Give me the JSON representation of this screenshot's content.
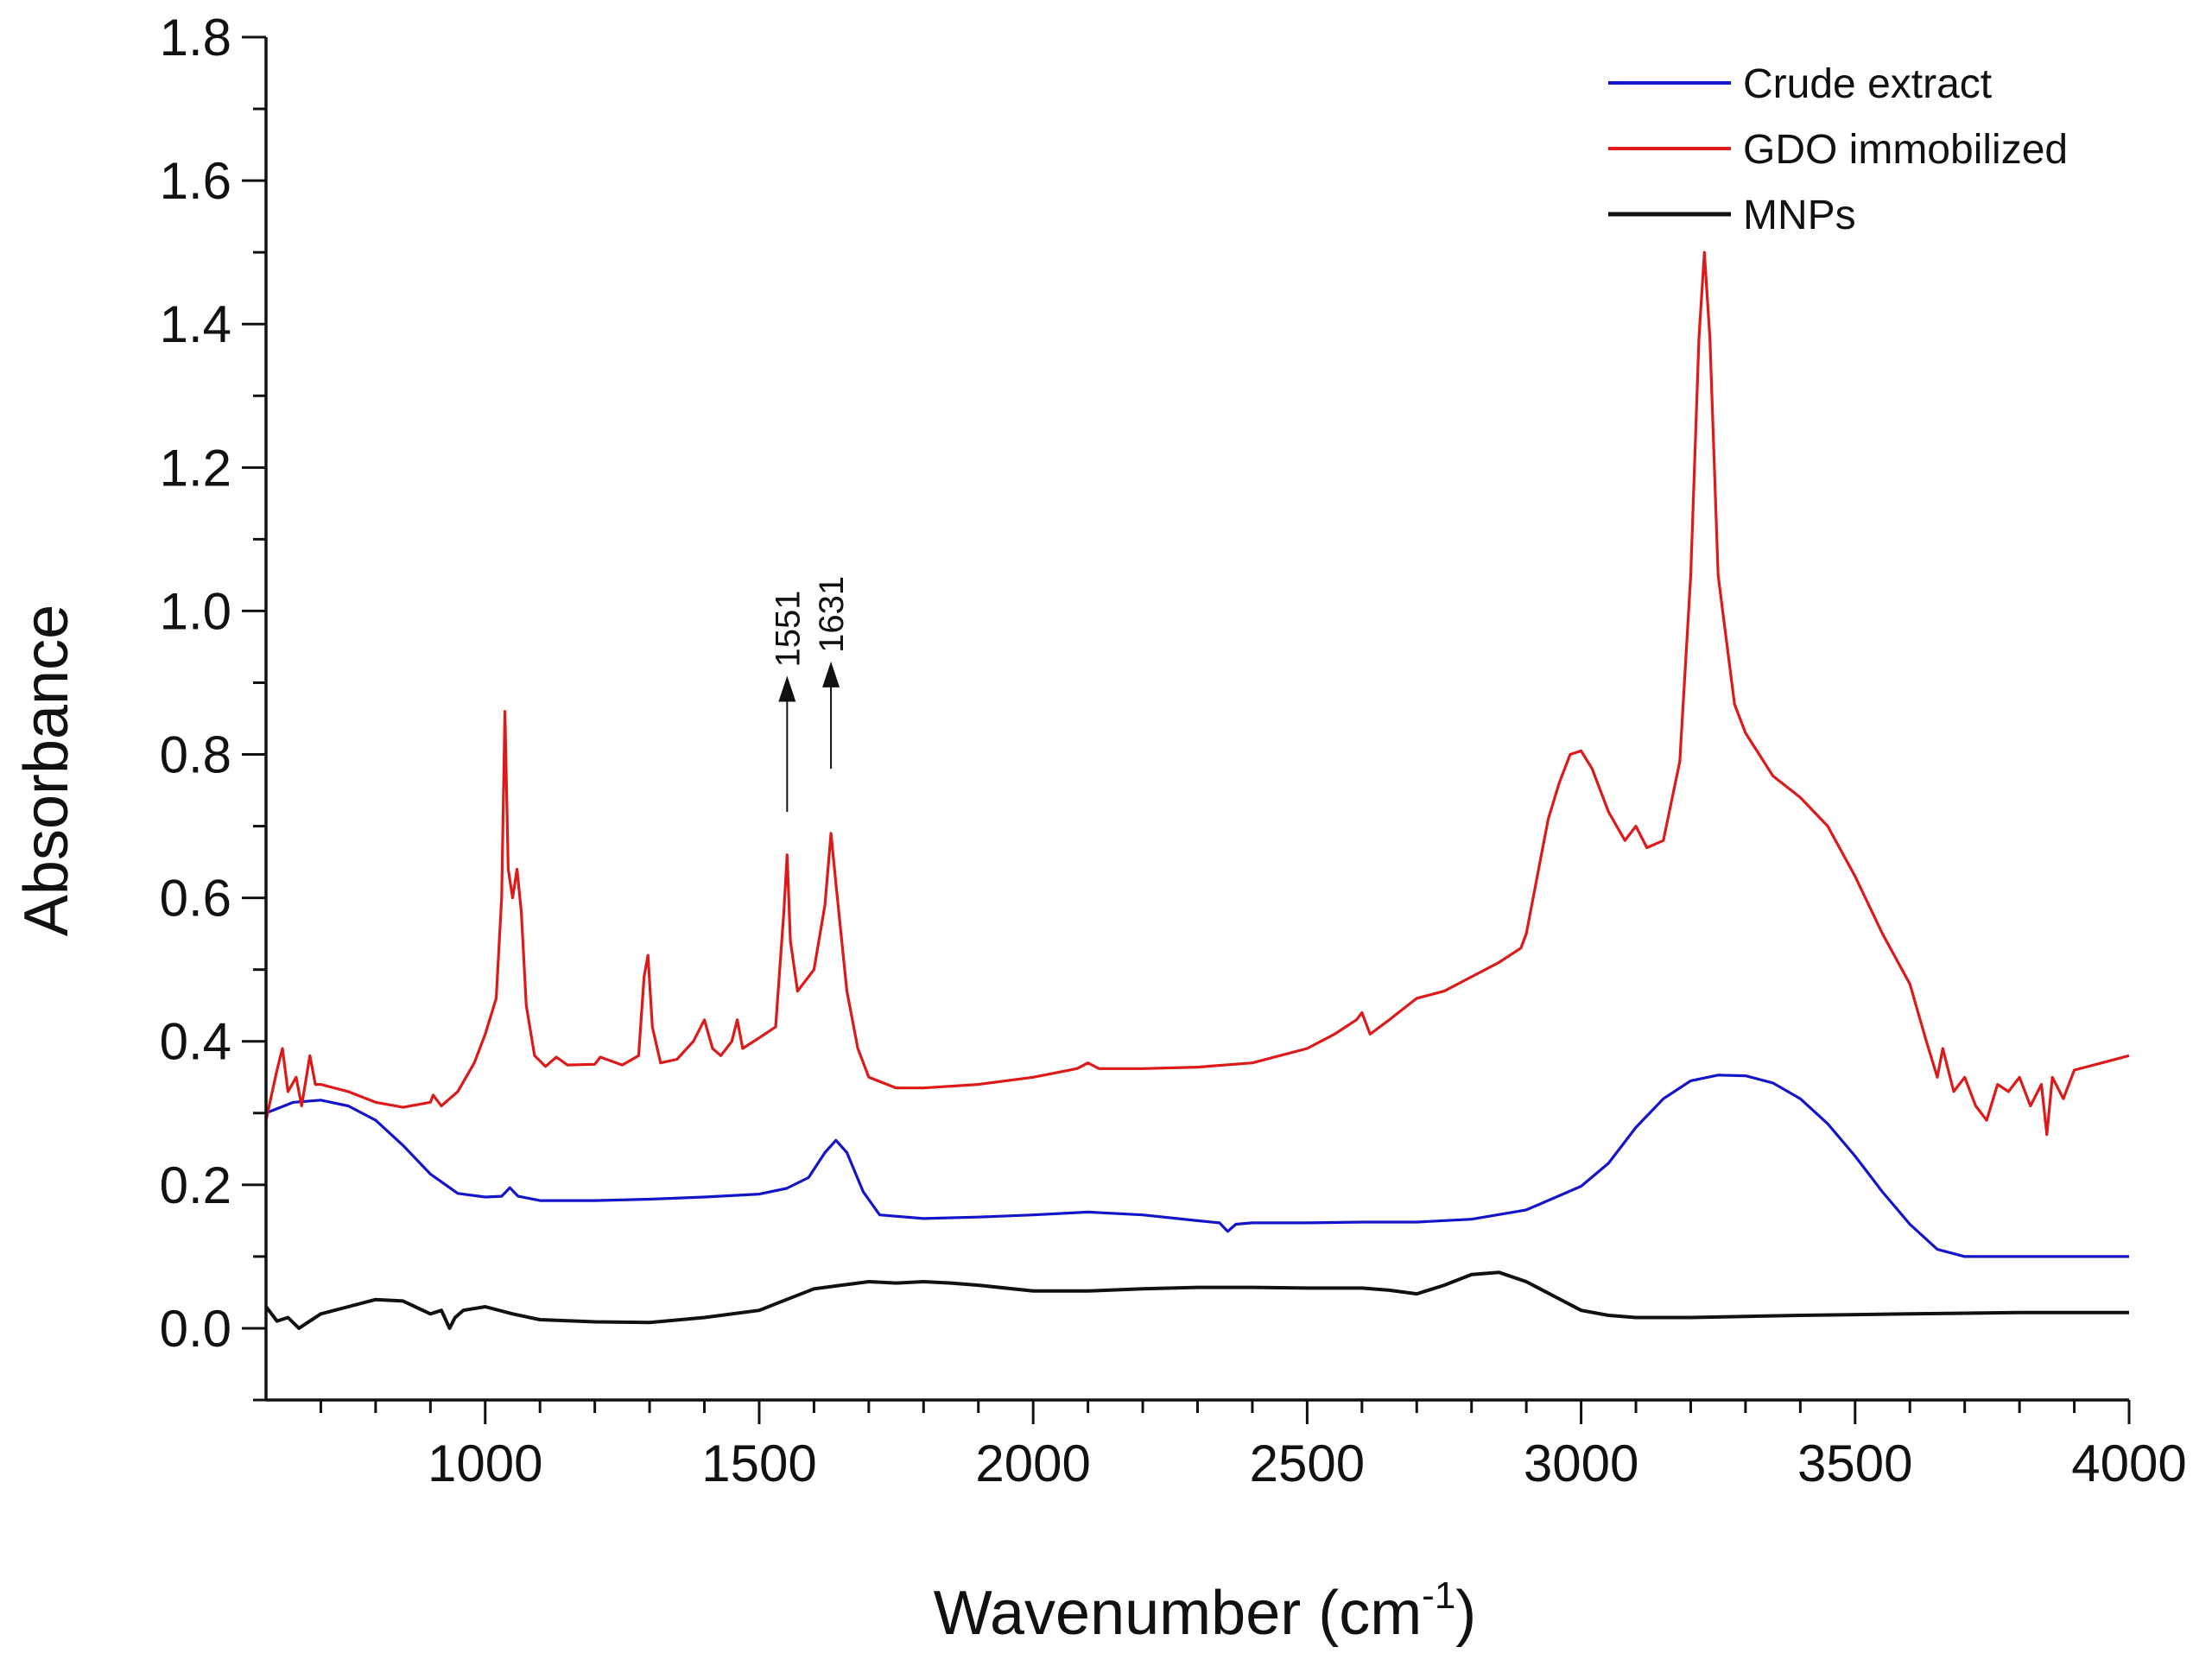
{
  "chart_data": {
    "type": "line",
    "title": "",
    "xlabel": "Wavenumber (cm",
    "xlabel_sup": "-1",
    "xlabel_close": ")",
    "ylabel": "Absorbance",
    "xlim": [
      600,
      4000
    ],
    "ylim": [
      -0.1,
      1.8
    ],
    "x_ticks": [
      1000,
      1500,
      2000,
      2500,
      3000,
      3500,
      4000
    ],
    "x_tick_labels": [
      "1000",
      "1500",
      "2000",
      "2500",
      "3000",
      "3500",
      "4000"
    ],
    "y_ticks": [
      0.0,
      0.2,
      0.4,
      0.6,
      0.8,
      1.0,
      1.2,
      1.4,
      1.6,
      1.8
    ],
    "y_tick_labels": [
      "0.0",
      "0.2",
      "0.4",
      "0.6",
      "0.8",
      "1.0",
      "1.2",
      "1.4",
      "1.6",
      "1.8"
    ],
    "grid": false,
    "legend_position": "top-right",
    "series": [
      {
        "name": "Crude extract",
        "color": "#1515c8",
        "points": [
          [
            600,
            0.3
          ],
          [
            650,
            0.315
          ],
          [
            700,
            0.318
          ],
          [
            750,
            0.31
          ],
          [
            800,
            0.29
          ],
          [
            850,
            0.255
          ],
          [
            900,
            0.215
          ],
          [
            950,
            0.188
          ],
          [
            1000,
            0.183
          ],
          [
            1030,
            0.184
          ],
          [
            1045,
            0.196
          ],
          [
            1060,
            0.184
          ],
          [
            1100,
            0.178
          ],
          [
            1200,
            0.178
          ],
          [
            1300,
            0.18
          ],
          [
            1400,
            0.183
          ],
          [
            1500,
            0.187
          ],
          [
            1550,
            0.195
          ],
          [
            1590,
            0.21
          ],
          [
            1620,
            0.245
          ],
          [
            1640,
            0.262
          ],
          [
            1660,
            0.245
          ],
          [
            1690,
            0.19
          ],
          [
            1720,
            0.158
          ],
          [
            1800,
            0.153
          ],
          [
            1900,
            0.155
          ],
          [
            2000,
            0.158
          ],
          [
            2100,
            0.162
          ],
          [
            2200,
            0.158
          ],
          [
            2300,
            0.15
          ],
          [
            2340,
            0.147
          ],
          [
            2355,
            0.135
          ],
          [
            2370,
            0.145
          ],
          [
            2400,
            0.147
          ],
          [
            2500,
            0.147
          ],
          [
            2600,
            0.148
          ],
          [
            2700,
            0.148
          ],
          [
            2800,
            0.152
          ],
          [
            2900,
            0.165
          ],
          [
            3000,
            0.198
          ],
          [
            3050,
            0.23
          ],
          [
            3100,
            0.28
          ],
          [
            3150,
            0.32
          ],
          [
            3200,
            0.345
          ],
          [
            3250,
            0.353
          ],
          [
            3300,
            0.352
          ],
          [
            3350,
            0.342
          ],
          [
            3400,
            0.32
          ],
          [
            3450,
            0.285
          ],
          [
            3500,
            0.24
          ],
          [
            3550,
            0.19
          ],
          [
            3600,
            0.145
          ],
          [
            3650,
            0.11
          ],
          [
            3700,
            0.1
          ],
          [
            3800,
            0.1
          ],
          [
            4000,
            0.1
          ]
        ]
      },
      {
        "name": "GDO immobilized",
        "color": "#dd1a1a",
        "points": [
          [
            600,
            0.29
          ],
          [
            620,
            0.36
          ],
          [
            630,
            0.39
          ],
          [
            640,
            0.33
          ],
          [
            655,
            0.35
          ],
          [
            665,
            0.31
          ],
          [
            680,
            0.38
          ],
          [
            690,
            0.34
          ],
          [
            700,
            0.34
          ],
          [
            750,
            0.33
          ],
          [
            800,
            0.315
          ],
          [
            850,
            0.308
          ],
          [
            900,
            0.315
          ],
          [
            905,
            0.325
          ],
          [
            920,
            0.31
          ],
          [
            950,
            0.33
          ],
          [
            980,
            0.37
          ],
          [
            1000,
            0.41
          ],
          [
            1020,
            0.46
          ],
          [
            1030,
            0.6
          ],
          [
            1036,
            0.86
          ],
          [
            1042,
            0.64
          ],
          [
            1050,
            0.6
          ],
          [
            1058,
            0.64
          ],
          [
            1066,
            0.58
          ],
          [
            1075,
            0.45
          ],
          [
            1090,
            0.38
          ],
          [
            1110,
            0.365
          ],
          [
            1130,
            0.378
          ],
          [
            1150,
            0.367
          ],
          [
            1200,
            0.368
          ],
          [
            1210,
            0.378
          ],
          [
            1250,
            0.367
          ],
          [
            1280,
            0.38
          ],
          [
            1290,
            0.49
          ],
          [
            1297,
            0.52
          ],
          [
            1305,
            0.42
          ],
          [
            1320,
            0.37
          ],
          [
            1350,
            0.375
          ],
          [
            1380,
            0.4
          ],
          [
            1400,
            0.43
          ],
          [
            1415,
            0.39
          ],
          [
            1430,
            0.38
          ],
          [
            1450,
            0.4
          ],
          [
            1460,
            0.43
          ],
          [
            1470,
            0.39
          ],
          [
            1500,
            0.405
          ],
          [
            1530,
            0.42
          ],
          [
            1545,
            0.58
          ],
          [
            1551,
            0.66
          ],
          [
            1557,
            0.54
          ],
          [
            1570,
            0.47
          ],
          [
            1600,
            0.5
          ],
          [
            1620,
            0.59
          ],
          [
            1631,
            0.69
          ],
          [
            1640,
            0.62
          ],
          [
            1660,
            0.47
          ],
          [
            1680,
            0.39
          ],
          [
            1700,
            0.35
          ],
          [
            1750,
            0.335
          ],
          [
            1800,
            0.335
          ],
          [
            1900,
            0.34
          ],
          [
            2000,
            0.35
          ],
          [
            2080,
            0.362
          ],
          [
            2100,
            0.37
          ],
          [
            2120,
            0.362
          ],
          [
            2200,
            0.362
          ],
          [
            2300,
            0.364
          ],
          [
            2400,
            0.37
          ],
          [
            2450,
            0.38
          ],
          [
            2500,
            0.39
          ],
          [
            2550,
            0.41
          ],
          [
            2590,
            0.43
          ],
          [
            2600,
            0.44
          ],
          [
            2615,
            0.41
          ],
          [
            2650,
            0.43
          ],
          [
            2700,
            0.46
          ],
          [
            2750,
            0.47
          ],
          [
            2800,
            0.49
          ],
          [
            2850,
            0.51
          ],
          [
            2890,
            0.53
          ],
          [
            2900,
            0.55
          ],
          [
            2920,
            0.63
          ],
          [
            2940,
            0.71
          ],
          [
            2960,
            0.76
          ],
          [
            2980,
            0.8
          ],
          [
            3000,
            0.805
          ],
          [
            3020,
            0.78
          ],
          [
            3050,
            0.72
          ],
          [
            3080,
            0.68
          ],
          [
            3100,
            0.7
          ],
          [
            3120,
            0.67
          ],
          [
            3150,
            0.68
          ],
          [
            3180,
            0.79
          ],
          [
            3200,
            1.05
          ],
          [
            3215,
            1.38
          ],
          [
            3225,
            1.5
          ],
          [
            3235,
            1.38
          ],
          [
            3250,
            1.05
          ],
          [
            3280,
            0.87
          ],
          [
            3300,
            0.83
          ],
          [
            3350,
            0.77
          ],
          [
            3400,
            0.74
          ],
          [
            3450,
            0.7
          ],
          [
            3500,
            0.63
          ],
          [
            3550,
            0.55
          ],
          [
            3600,
            0.48
          ],
          [
            3630,
            0.4
          ],
          [
            3650,
            0.35
          ],
          [
            3660,
            0.39
          ],
          [
            3680,
            0.33
          ],
          [
            3700,
            0.35
          ],
          [
            3720,
            0.31
          ],
          [
            3740,
            0.29
          ],
          [
            3760,
            0.34
          ],
          [
            3780,
            0.33
          ],
          [
            3800,
            0.35
          ],
          [
            3820,
            0.31
          ],
          [
            3840,
            0.34
          ],
          [
            3850,
            0.27
          ],
          [
            3860,
            0.35
          ],
          [
            3880,
            0.32
          ],
          [
            3900,
            0.36
          ],
          [
            3950,
            0.37
          ],
          [
            4000,
            0.38
          ]
        ]
      },
      {
        "name": "MNPs",
        "color": "#111111",
        "points": [
          [
            600,
            0.03
          ],
          [
            620,
            0.01
          ],
          [
            640,
            0.015
          ],
          [
            660,
            0.0
          ],
          [
            680,
            0.01
          ],
          [
            700,
            0.02
          ],
          [
            750,
            0.03
          ],
          [
            800,
            0.04
          ],
          [
            850,
            0.038
          ],
          [
            900,
            0.02
          ],
          [
            920,
            0.025
          ],
          [
            935,
            0.0
          ],
          [
            945,
            0.015
          ],
          [
            960,
            0.025
          ],
          [
            1000,
            0.03
          ],
          [
            1050,
            0.02
          ],
          [
            1100,
            0.012
          ],
          [
            1200,
            0.009
          ],
          [
            1300,
            0.008
          ],
          [
            1400,
            0.015
          ],
          [
            1500,
            0.025
          ],
          [
            1550,
            0.04
          ],
          [
            1600,
            0.055
          ],
          [
            1650,
            0.06
          ],
          [
            1700,
            0.065
          ],
          [
            1750,
            0.063
          ],
          [
            1800,
            0.065
          ],
          [
            1850,
            0.063
          ],
          [
            1900,
            0.06
          ],
          [
            2000,
            0.052
          ],
          [
            2100,
            0.052
          ],
          [
            2200,
            0.055
          ],
          [
            2300,
            0.057
          ],
          [
            2400,
            0.057
          ],
          [
            2500,
            0.056
          ],
          [
            2600,
            0.056
          ],
          [
            2650,
            0.053
          ],
          [
            2700,
            0.048
          ],
          [
            2750,
            0.06
          ],
          [
            2800,
            0.075
          ],
          [
            2850,
            0.078
          ],
          [
            2900,
            0.065
          ],
          [
            2950,
            0.045
          ],
          [
            3000,
            0.025
          ],
          [
            3050,
            0.018
          ],
          [
            3100,
            0.015
          ],
          [
            3200,
            0.015
          ],
          [
            3400,
            0.018
          ],
          [
            3600,
            0.02
          ],
          [
            3800,
            0.022
          ],
          [
            4000,
            0.022
          ]
        ]
      }
    ],
    "annotations": [
      {
        "label": "1551",
        "x": 1551,
        "y_from": 0.72,
        "y_to": 0.9
      },
      {
        "label": "1631",
        "x": 1631,
        "y_from": 0.78,
        "y_to": 0.92
      }
    ]
  }
}
